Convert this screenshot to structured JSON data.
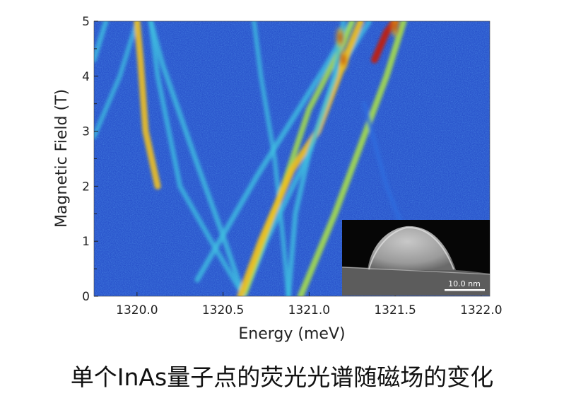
{
  "chart_data": {
    "type": "heatmap",
    "title": "",
    "xlabel": "Energy (meV)",
    "ylabel": "Magnetic Field (T)",
    "xlim": [
      1319.75,
      1322.05
    ],
    "ylim": [
      0,
      5
    ],
    "x_ticks": [
      "1320.0",
      "1320.5",
      "1321.0",
      "1321.5",
      "1322.0"
    ],
    "x_tick_values": [
      1320.0,
      1320.5,
      1321.0,
      1321.5,
      1322.0
    ],
    "y_ticks": [
      "0",
      "1",
      "2",
      "3",
      "4",
      "5"
    ],
    "y_tick_values": [
      0,
      1,
      2,
      3,
      4,
      5
    ],
    "colormap": [
      "#1e3fa8",
      "#2f6ee0",
      "#3fc0e0",
      "#a8e048",
      "#f0c020",
      "#c02010"
    ],
    "background_color": "#2a55cc",
    "series": [
      {
        "points": [
          [
            1319.75,
            2.9
          ],
          [
            1319.9,
            4.0
          ],
          [
            1320.0,
            5.0
          ]
        ],
        "intensity": 0.45
      },
      {
        "points": [
          [
            1319.75,
            4.3
          ],
          [
            1319.82,
            5.0
          ]
        ],
        "intensity": 0.55
      },
      {
        "points": [
          [
            1320.0,
            5.0
          ],
          [
            1320.02,
            4.3
          ],
          [
            1320.05,
            3.0
          ],
          [
            1320.12,
            2.0
          ]
        ],
        "intensity": 0.85
      },
      {
        "points": [
          [
            1320.08,
            5.0
          ],
          [
            1320.12,
            4.0
          ],
          [
            1320.25,
            2.0
          ],
          [
            1320.45,
            0.9
          ],
          [
            1320.62,
            0.0
          ]
        ],
        "intensity": 0.5
      },
      {
        "points": [
          [
            1320.62,
            0.0
          ],
          [
            1320.75,
            1.0
          ],
          [
            1321.0,
            2.6
          ],
          [
            1321.15,
            4.0
          ],
          [
            1321.35,
            5.0
          ]
        ],
        "intensity": 0.55
      },
      {
        "points": [
          [
            1320.35,
            0.3
          ],
          [
            1320.7,
            2.2
          ],
          [
            1321.1,
            4.2
          ],
          [
            1321.25,
            5.0
          ]
        ],
        "intensity": 0.6
      },
      {
        "points": [
          [
            1320.88,
            0.0
          ],
          [
            1320.85,
            1.0
          ],
          [
            1320.8,
            2.5
          ],
          [
            1320.72,
            4.0
          ],
          [
            1320.68,
            5.0
          ]
        ],
        "intensity": 0.45
      },
      {
        "points": [
          [
            1320.62,
            0.0
          ],
          [
            1320.85,
            2.0
          ],
          [
            1321.0,
            3.4
          ],
          [
            1321.2,
            4.6
          ],
          [
            1321.25,
            5.0
          ]
        ],
        "intensity": 0.7
      },
      {
        "points": [
          [
            1320.62,
            0.0
          ],
          [
            1320.5,
            1.1
          ],
          [
            1320.35,
            2.4
          ],
          [
            1320.15,
            4.2
          ],
          [
            1320.08,
            5.0
          ]
        ],
        "intensity": 0.55
      },
      {
        "points": [
          [
            1320.95,
            0.0
          ],
          [
            1321.15,
            1.5
          ],
          [
            1321.45,
            4.0
          ],
          [
            1321.55,
            5.0
          ]
        ],
        "intensity": 0.8
      },
      {
        "points": [
          [
            1321.3,
            5.0
          ],
          [
            1321.22,
            4.4
          ],
          [
            1321.05,
            3.0
          ],
          [
            1320.9,
            2.3
          ],
          [
            1320.72,
            1.0
          ],
          [
            1320.6,
            0.0
          ]
        ],
        "intensity": 0.9
      },
      {
        "points": [
          [
            1321.2,
            5.0
          ],
          [
            1321.15,
            4.0
          ],
          [
            1321.0,
            2.6
          ],
          [
            1320.92,
            1.5
          ],
          [
            1320.88,
            0.0
          ]
        ],
        "intensity": 0.55
      },
      {
        "points": [
          [
            1321.32,
            3.5
          ],
          [
            1321.45,
            2.0
          ],
          [
            1321.55,
            1.2
          ]
        ],
        "intensity": 0.4
      },
      {
        "points": [
          [
            1321.5,
            5.0
          ],
          [
            1321.45,
            4.8
          ],
          [
            1321.38,
            4.3
          ]
        ],
        "intensity": 0.95
      }
    ],
    "hotspots": [
      {
        "x": 1321.18,
        "y": 4.7,
        "intensity": 1.0
      },
      {
        "x": 1321.2,
        "y": 4.3,
        "intensity": 0.95
      },
      {
        "x": 1321.5,
        "y": 4.9,
        "intensity": 0.95
      }
    ],
    "inset": {
      "description": "SEM micrograph",
      "scale_bar_label": "10.0 nm"
    }
  },
  "caption": "单个InAs量子点的荧光光谱随磁场的变化"
}
